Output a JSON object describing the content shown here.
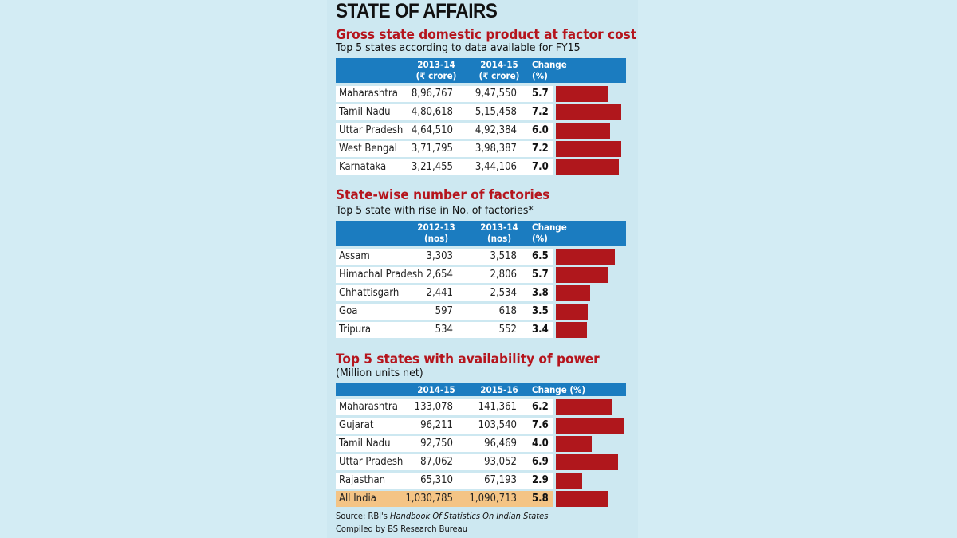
{
  "title": "STATE OF AFFAIRS",
  "colors": {
    "header": "#1b7cc0",
    "bar": "#b0171c",
    "section_title": "#b5151d",
    "total_row": "#f4c485"
  },
  "chart_data": [
    {
      "type": "table",
      "title": "Gross state domestic product at factor cost",
      "subtitle": "Top 5 states according to data available for FY15",
      "headers": [
        "2013-14\n(₹ crore)",
        "2014-15\n(₹ crore)",
        "Change\n(%)"
      ],
      "header_lines": [
        [
          "2013-14",
          "(₹ crore)"
        ],
        [
          "2014-15",
          "(₹ crore)"
        ],
        [
          "Change",
          "(%)"
        ]
      ],
      "rows": [
        {
          "state": "Maharashtra",
          "v1": "8,96,767",
          "v2": "9,47,550",
          "change": 5.7
        },
        {
          "state": "Tamil Nadu",
          "v1": "4,80,618",
          "v2": "5,15,458",
          "change": 7.2
        },
        {
          "state": "Uttar Pradesh",
          "v1": "4,64,510",
          "v2": "4,92,384",
          "change": 6.0
        },
        {
          "state": "West Bengal",
          "v1": "3,71,795",
          "v2": "3,98,387",
          "change": 7.2
        },
        {
          "state": "Karnataka",
          "v1": "3,21,455",
          "v2": "3,44,106",
          "change": 7.0
        }
      ]
    },
    {
      "type": "table",
      "title": "State-wise number of factories",
      "subtitle": "Top 5 state with rise in No. of factories*",
      "header_lines": [
        [
          "2012-13",
          "(nos)"
        ],
        [
          "2013-14",
          "(nos)"
        ],
        [
          "Change",
          "(%)"
        ]
      ],
      "rows": [
        {
          "state": "Assam",
          "v1": "3,303",
          "v2": "3,518",
          "change": 6.5
        },
        {
          "state": "Himachal Pradesh",
          "v1": "2,654",
          "v2": "2,806",
          "change": 5.7
        },
        {
          "state": "Chhattisgarh",
          "v1": "2,441",
          "v2": "2,534",
          "change": 3.8
        },
        {
          "state": "Goa",
          "v1": "597",
          "v2": "618",
          "change": 3.5
        },
        {
          "state": "Tripura",
          "v1": "534",
          "v2": "552",
          "change": 3.4
        }
      ]
    },
    {
      "type": "table",
      "title": "Top 5 states with availability of power",
      "subtitle": "(Million units net)",
      "header_lines": [
        [
          "2014-15"
        ],
        [
          "2015-16"
        ],
        [
          "Change (%)"
        ]
      ],
      "rows": [
        {
          "state": "Maharashtra",
          "v1": "133,078",
          "v2": "141,361",
          "change": 6.2
        },
        {
          "state": "Gujarat",
          "v1": "96,211",
          "v2": "103,540",
          "change": 7.6
        },
        {
          "state": "Tamil Nadu",
          "v1": "92,750",
          "v2": "96,469",
          "change": 4.0
        },
        {
          "state": "Uttar Pradesh",
          "v1": "87,062",
          "v2": "93,052",
          "change": 6.9
        },
        {
          "state": "Rajasthan",
          "v1": "65,310",
          "v2": "67,193",
          "change": 2.9
        },
        {
          "state": "All India",
          "v1": "1,030,785",
          "v2": "1,090,713",
          "change": 5.8,
          "total": true
        }
      ]
    }
  ],
  "footer": {
    "source_prefix": "Source: RBI's ",
    "source_title": "Handbook Of Statistics On Indian States",
    "compiled": "Compiled by BS Research Bureau"
  }
}
